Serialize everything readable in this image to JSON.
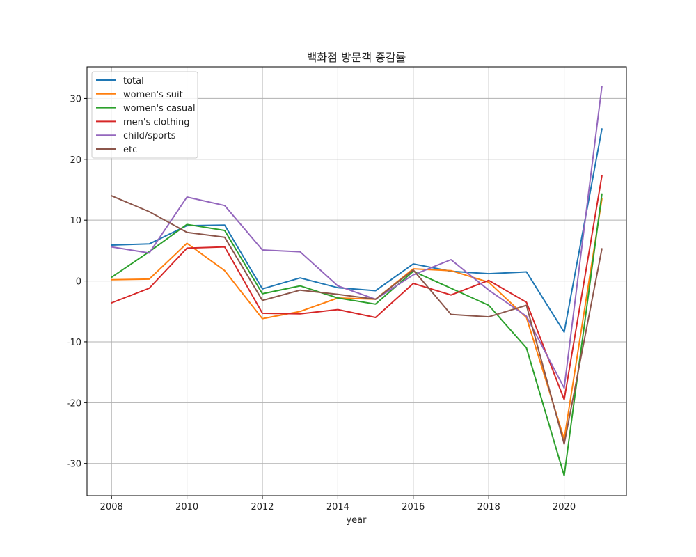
{
  "chart_data": {
    "type": "line",
    "title": "백화점 방문객 증감률",
    "xlabel": "year",
    "ylabel": "",
    "x": [
      2008,
      2009,
      2010,
      2011,
      2012,
      2013,
      2014,
      2015,
      2016,
      2017,
      2018,
      2019,
      2020,
      2021
    ],
    "xlim": [
      2007.35,
      2021.65
    ],
    "ylim": [
      -35.3,
      35.2
    ],
    "xticks": [
      2008,
      2010,
      2012,
      2014,
      2016,
      2018,
      2020
    ],
    "yticks": [
      -30,
      -20,
      -10,
      0,
      10,
      20,
      30
    ],
    "grid": true,
    "legend_position": "top-left",
    "series": [
      {
        "name": "total",
        "color": "#1f77b4",
        "values": [
          5.9,
          6.1,
          9.1,
          9.2,
          -1.3,
          0.5,
          -1.1,
          -1.6,
          2.8,
          1.6,
          1.2,
          1.5,
          -8.4,
          25.0
        ]
      },
      {
        "name": "women's suit",
        "color": "#ff7f0e",
        "values": [
          0.2,
          0.3,
          6.2,
          1.7,
          -6.2,
          -5.0,
          -2.8,
          -3.0,
          2.0,
          1.7,
          -0.2,
          -6.0,
          -26.0,
          13.5
        ]
      },
      {
        "name": "women's casual",
        "color": "#2ca02c",
        "values": [
          0.6,
          4.8,
          9.3,
          8.3,
          -2.1,
          -0.8,
          -2.8,
          -3.8,
          1.6,
          -1.2,
          -4.0,
          -11.0,
          -32.0,
          14.3
        ]
      },
      {
        "name": "men's clothing",
        "color": "#d62728",
        "values": [
          -3.6,
          -1.2,
          5.4,
          5.6,
          -5.3,
          -5.4,
          -4.7,
          -6.0,
          -0.4,
          -2.3,
          0.1,
          -3.5,
          -19.5,
          17.3
        ]
      },
      {
        "name": "child/sports",
        "color": "#9467bd",
        "values": [
          5.6,
          4.6,
          13.8,
          12.4,
          5.1,
          4.8,
          -0.8,
          -3.0,
          1.0,
          3.5,
          -1.5,
          -5.8,
          -17.6,
          32.0
        ]
      },
      {
        "name": "etc",
        "color": "#8c564b",
        "values": [
          14.0,
          11.4,
          8.0,
          7.2,
          -3.2,
          -1.5,
          -2.2,
          -3.0,
          1.8,
          -5.5,
          -5.9,
          -4.0,
          -26.8,
          5.3
        ]
      }
    ]
  }
}
